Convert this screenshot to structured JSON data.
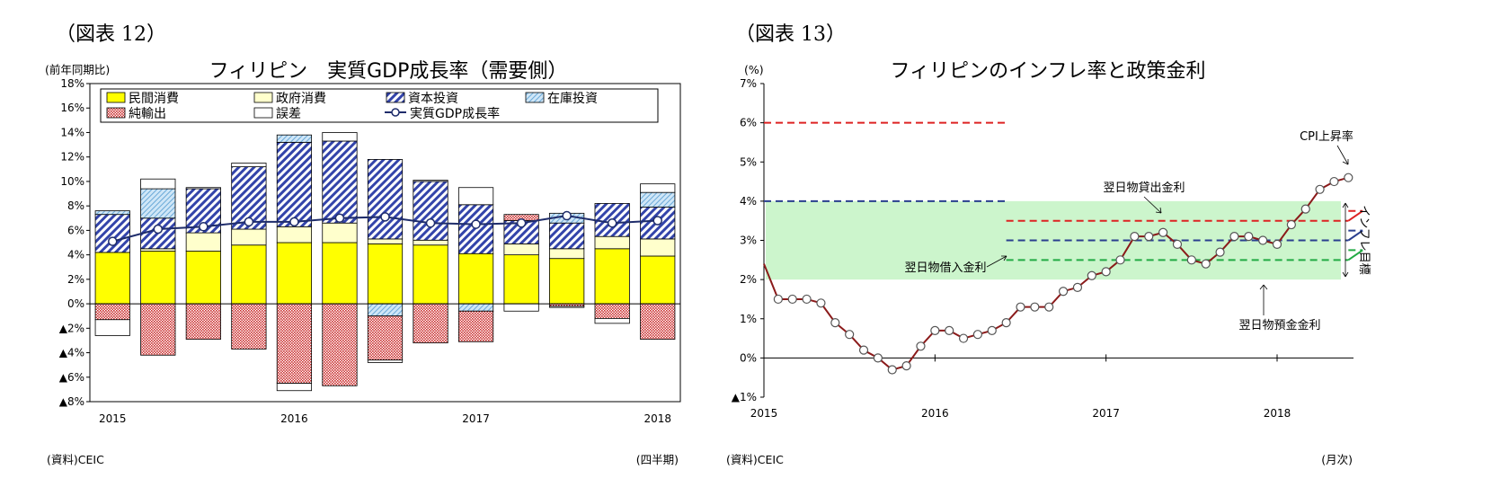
{
  "left": {
    "fig_label": "（図表 12）",
    "unit_label": "(前年同期比)",
    "source": "(資料)CEIC",
    "period_note": "(四半期)",
    "chart_data": {
      "type": "bar",
      "title": "フィリピン　実質GDP成長率（需要側）",
      "ylabel": "(前年同期比)",
      "ylim": [
        -8,
        18
      ],
      "yticks": [
        "18%",
        "16%",
        "14%",
        "12%",
        "10%",
        "8%",
        "6%",
        "4%",
        "2%",
        "0%",
        "▲2%",
        "▲4%",
        "▲6%",
        "▲8%"
      ],
      "x_labels": [
        "2015",
        "2016",
        "2017",
        "2018"
      ],
      "x_label_quarter_index": [
        0,
        4,
        8,
        12
      ],
      "categories": [
        "2015Q1",
        "2015Q2",
        "2015Q3",
        "2015Q4",
        "2016Q1",
        "2016Q2",
        "2016Q3",
        "2016Q4",
        "2017Q1",
        "2017Q2",
        "2017Q3",
        "2017Q4",
        "2018Q1"
      ],
      "legend_position": "top",
      "series": [
        {
          "name": "民間消費",
          "values": [
            4.2,
            4.3,
            4.3,
            4.8,
            5.0,
            5.0,
            4.9,
            4.8,
            4.1,
            4.0,
            3.7,
            4.5,
            3.9
          ],
          "color": "#ffff00"
        },
        {
          "name": "政府消費",
          "values": [
            0.0,
            0.2,
            1.5,
            1.3,
            1.3,
            1.6,
            0.4,
            0.4,
            0.0,
            0.9,
            0.8,
            1.0,
            1.4
          ],
          "color": "#ffffcc"
        },
        {
          "name": "資本投資",
          "values": [
            3.1,
            2.5,
            3.6,
            5.1,
            6.9,
            6.7,
            6.5,
            4.8,
            4.0,
            1.9,
            2.1,
            2.7,
            2.6
          ],
          "color": "#3344aa"
        },
        {
          "name": "在庫投資",
          "values": [
            0.3,
            2.4,
            0.0,
            0.0,
            0.6,
            0.0,
            -1.0,
            0.0,
            -0.6,
            0.0,
            0.8,
            0.0,
            1.2
          ],
          "color": "#99ccee"
        },
        {
          "name": "純輸出",
          "values": [
            -1.3,
            -4.2,
            -2.9,
            -3.7,
            -6.5,
            -6.7,
            -3.6,
            -3.2,
            -2.5,
            0.5,
            -0.2,
            -1.2,
            -2.9
          ],
          "color": "#cc3333"
        },
        {
          "name": "誤差",
          "values": [
            -1.3,
            0.8,
            0.1,
            0.3,
            -0.6,
            0.7,
            -0.2,
            0.1,
            1.4,
            -0.6,
            -0.1,
            -0.4,
            0.7
          ],
          "color": "#ffffff"
        }
      ],
      "line": {
        "name": "実質GDP成長率",
        "values": [
          5.1,
          6.1,
          6.3,
          6.7,
          6.7,
          7.0,
          7.1,
          6.6,
          6.5,
          6.6,
          7.2,
          6.6,
          6.8
        ],
        "color": "#1f2d6b"
      }
    }
  },
  "right": {
    "fig_label": "（図表 13）",
    "source": "(資料)CEIC",
    "period_note": "(月次)",
    "chart_data": {
      "type": "line",
      "title": "フィリピンのインフレ率と政策金利",
      "ylabel": "(%)",
      "ylim": [
        -1,
        7
      ],
      "yticks": [
        "7%",
        "6%",
        "5%",
        "4%",
        "3%",
        "2%",
        "1%",
        "0%",
        "▲1%"
      ],
      "x_labels": [
        "2015",
        "2016",
        "2017",
        "2018"
      ],
      "x_label_month_index": [
        0,
        12,
        24,
        36
      ],
      "target_band": {
        "low": 2,
        "high": 4,
        "label": "インフレ目標",
        "color": "#ccf5cc"
      },
      "cpi": {
        "name": "CPI上昇率",
        "start": "2015-01",
        "values": [
          2.4,
          1.5,
          1.5,
          1.5,
          1.4,
          0.9,
          0.6,
          0.2,
          0.0,
          -0.3,
          -0.2,
          0.3,
          0.7,
          0.7,
          0.5,
          0.6,
          0.7,
          0.9,
          1.3,
          1.3,
          1.3,
          1.7,
          1.8,
          2.1,
          2.2,
          2.5,
          3.1,
          3.1,
          3.2,
          2.9,
          2.5,
          2.4,
          2.7,
          3.1,
          3.1,
          3.0,
          2.9,
          3.4,
          3.8,
          4.3,
          4.5,
          4.6
        ],
        "color": "#8b1a1a"
      },
      "policy_rates": [
        {
          "name": "翌日物貸出金利",
          "segments": [
            {
              "start": "2015-01",
              "end": "2016-05",
              "value": 6.0
            },
            {
              "start": "2016-06",
              "end": "2018-05",
              "value": 3.5
            },
            {
              "start": "2018-06",
              "end": "2018-06",
              "value": 3.75
            }
          ],
          "color": "#dd2222"
        },
        {
          "name": "翌日物借入金利",
          "segments": [
            {
              "start": "2015-01",
              "end": "2016-05",
              "value": 4.0
            },
            {
              "start": "2016-06",
              "end": "2018-05",
              "value": 3.0
            },
            {
              "start": "2018-06",
              "end": "2018-06",
              "value": 3.25
            }
          ],
          "color": "#2a3f8f"
        },
        {
          "name": "翌日物預金金利",
          "segments": [
            {
              "start": "2016-06",
              "end": "2018-05",
              "value": 2.5
            },
            {
              "start": "2018-06",
              "end": "2018-06",
              "value": 2.75
            }
          ],
          "color": "#22aa44"
        }
      ]
    }
  }
}
